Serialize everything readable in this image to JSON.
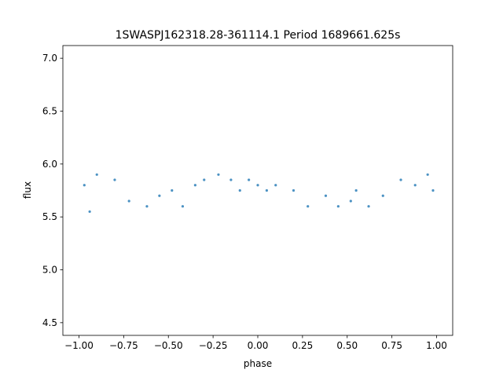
{
  "chart_data": {
    "type": "scatter",
    "title": "1SWASPJ162318.28-361114.1 Period 1689661.625s",
    "xlabel": "phase",
    "ylabel": "flux",
    "xlim": [
      -1.09,
      1.09
    ],
    "ylim": [
      4.38,
      7.12
    ],
    "x_ticks": [
      -1.0,
      -0.75,
      -0.5,
      -0.25,
      0.0,
      0.25,
      0.5,
      0.75,
      1.0
    ],
    "x_tick_labels": [
      "−1.00",
      "−0.75",
      "−0.50",
      "−0.25",
      "0.00",
      "0.25",
      "0.50",
      "0.75",
      "1.00"
    ],
    "y_ticks": [
      4.5,
      5.0,
      5.5,
      6.0,
      6.5,
      7.0
    ],
    "y_tick_labels": [
      "4.5",
      "5.0",
      "5.5",
      "6.0",
      "6.5",
      "7.0"
    ],
    "grid": false,
    "legend": "none",
    "point_color": "#1f77b4",
    "series": [
      {
        "x": [
          -0.97,
          -0.94,
          -0.9,
          -0.8,
          -0.72,
          -0.62,
          -0.55,
          -0.48,
          -0.42,
          -0.35,
          -0.3,
          -0.22,
          -0.15,
          -0.1,
          -0.05,
          0.0,
          0.05,
          0.1,
          0.2,
          0.28,
          0.38,
          0.45,
          0.52,
          0.55,
          0.62,
          0.7,
          0.8,
          0.88,
          0.95,
          0.98
        ],
        "y": [
          5.8,
          5.55,
          5.9,
          5.85,
          5.65,
          5.6,
          5.7,
          5.75,
          5.6,
          5.8,
          5.85,
          5.9,
          5.85,
          5.75,
          5.85,
          5.8,
          5.75,
          5.8,
          5.75,
          5.6,
          5.7,
          5.6,
          5.65,
          5.75,
          5.6,
          5.7,
          5.85,
          5.8,
          5.9,
          5.75
        ]
      }
    ]
  }
}
